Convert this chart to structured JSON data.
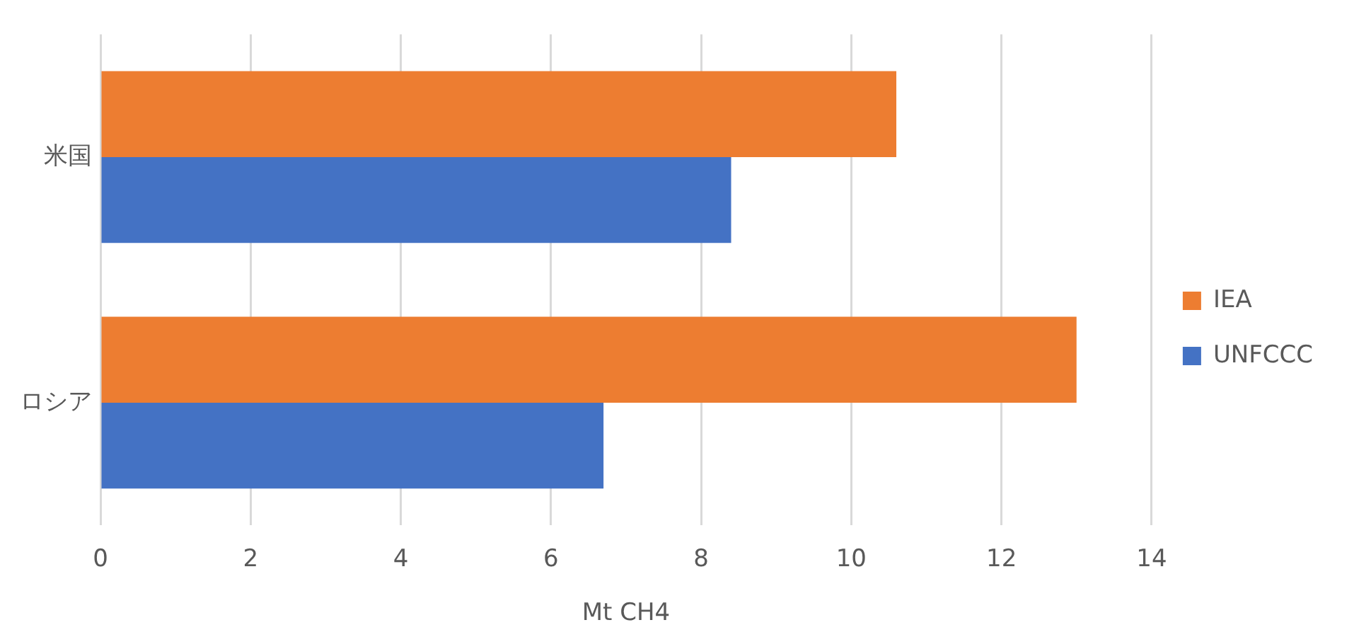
{
  "chart_data": {
    "type": "bar",
    "orientation": "horizontal",
    "categories": [
      "米国",
      "ロシア"
    ],
    "series": [
      {
        "name": "IEA",
        "color": "#ed7d31",
        "values": [
          10.6,
          13.0
        ]
      },
      {
        "name": "UNFCCC",
        "color": "#4472c4",
        "values": [
          8.4,
          6.7
        ]
      }
    ],
    "xlabel": "Mt CH4",
    "xlim": [
      0,
      14
    ],
    "xticks": [
      0,
      2,
      4,
      6,
      8,
      10,
      12,
      14
    ],
    "grid": "x",
    "legend": "right"
  }
}
